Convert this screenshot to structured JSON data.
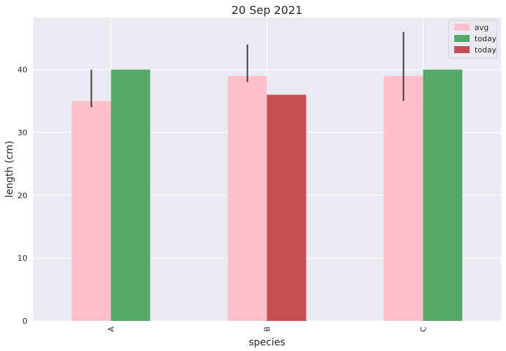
{
  "chart_data": {
    "type": "bar",
    "title": "20 Sep 2021",
    "xlabel": "species",
    "ylabel": "length (cm)",
    "categories": [
      "A",
      "B",
      "C"
    ],
    "ylim": [
      0,
      48.3
    ],
    "yticks": [
      0,
      10,
      20,
      30,
      40
    ],
    "grid": true,
    "legend_position": "top-right",
    "series": [
      {
        "name": "avg",
        "color": "#ffc0cb",
        "values": [
          35,
          39,
          39
        ],
        "error_low": [
          34,
          38,
          35
        ],
        "error_high": [
          40,
          44,
          46
        ]
      },
      {
        "name": "today",
        "values": [
          40,
          36,
          40
        ],
        "colors": [
          "#55a868",
          "#c44e52",
          "#55a868"
        ]
      }
    ],
    "legend": [
      {
        "label": "avg",
        "color": "#ffc0cb"
      },
      {
        "label": "today",
        "color": "#55a868"
      },
      {
        "label": "today",
        "color": "#c44e52"
      }
    ],
    "background_color": "#eaeaf2",
    "grid_color": "#ffffff",
    "error_bar_color": "#3a3a3a"
  }
}
